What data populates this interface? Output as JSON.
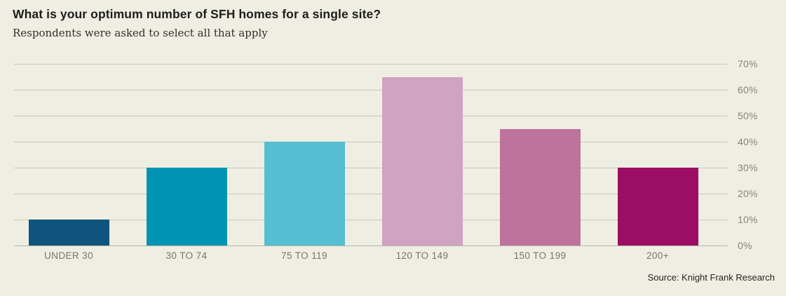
{
  "header": {
    "title": "What is your optimum number of SFH homes for a single site?",
    "subtitle": "Respondents were asked to select all that apply"
  },
  "footer": {
    "source": "Source: Knight Frank Research"
  },
  "colors": {
    "background": "#efeee3",
    "gridline": "#c7c7be",
    "axis_label": "#85857b",
    "category_label": "#76766d",
    "title_text": "#1d1d1b",
    "source_text": "#26261f"
  },
  "chart_data": {
    "type": "bar",
    "title": "What is your optimum number of SFH homes for a single site?",
    "subtitle": "Respondents were asked to select all that apply",
    "categories": [
      "UNDER 30",
      "30 TO 74",
      "75 TO 119",
      "120 TO 149",
      "150 TO 199",
      "200+"
    ],
    "values": [
      10,
      30,
      40,
      65,
      45,
      30
    ],
    "unit": "%",
    "bar_colors": [
      "#0F547C",
      "#0093B2",
      "#55BED1",
      "#D0A3C2",
      "#BD739C",
      "#9B0E63"
    ],
    "ylim": [
      0,
      70
    ],
    "ytick_labels": [
      "70%",
      "60%",
      "50%",
      "40%",
      "30%",
      "20%",
      "10%",
      "0%"
    ],
    "grid": true,
    "yaxis_side": "right",
    "legend": null,
    "source": "Source: Knight Frank Research"
  }
}
